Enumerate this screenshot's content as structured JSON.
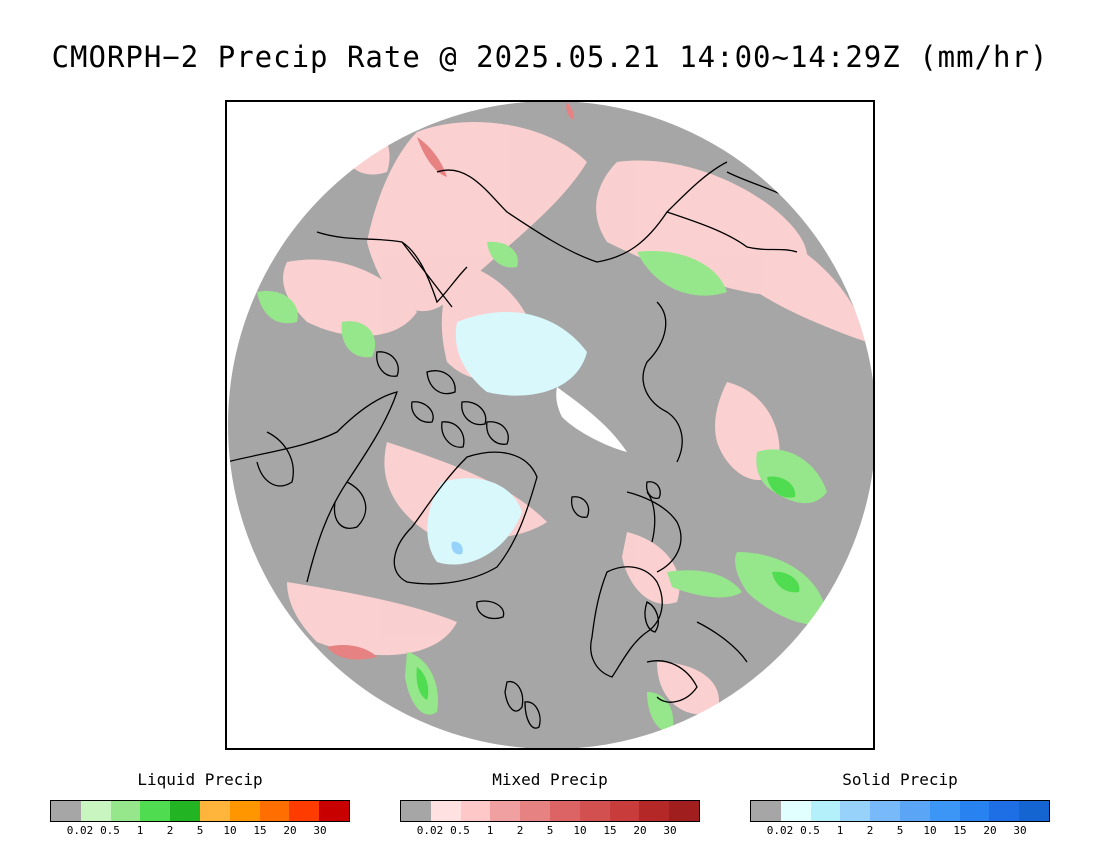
{
  "title": "CMORPH−2 Precip Rate @ 2025.05.21 14:00~14:29Z (mm/hr)",
  "legends": [
    {
      "label": "Liquid Precip",
      "colors": [
        "#a6a6a6",
        "#c8f5c0",
        "#96e68c",
        "#50dc50",
        "#23b423",
        "#ffb43c",
        "#ff9600",
        "#ff6e00",
        "#ff3c00",
        "#c80000"
      ],
      "ticks": [
        "0.02",
        "0.5",
        "1",
        "2",
        "5",
        "10",
        "15",
        "20",
        "30"
      ]
    },
    {
      "label": "Mixed Precip",
      "colors": [
        "#a6a6a6",
        "#ffe1e1",
        "#ffc8c8",
        "#f0a0a0",
        "#e68282",
        "#dc6464",
        "#d25050",
        "#c83c3c",
        "#b42828",
        "#a01e1e"
      ],
      "ticks": [
        "0.02",
        "0.5",
        "1",
        "2",
        "5",
        "10",
        "15",
        "20",
        "30"
      ]
    },
    {
      "label": "Solid Precip",
      "colors": [
        "#a6a6a6",
        "#e1ffff",
        "#b4f0fa",
        "#96d2fa",
        "#78b9fa",
        "#5aa5f5",
        "#3c96f5",
        "#2882f0",
        "#1e6ee6",
        "#1464d2"
      ],
      "ticks": [
        "0.02",
        "0.5",
        "1",
        "2",
        "5",
        "10",
        "15",
        "20",
        "30"
      ]
    }
  ]
}
